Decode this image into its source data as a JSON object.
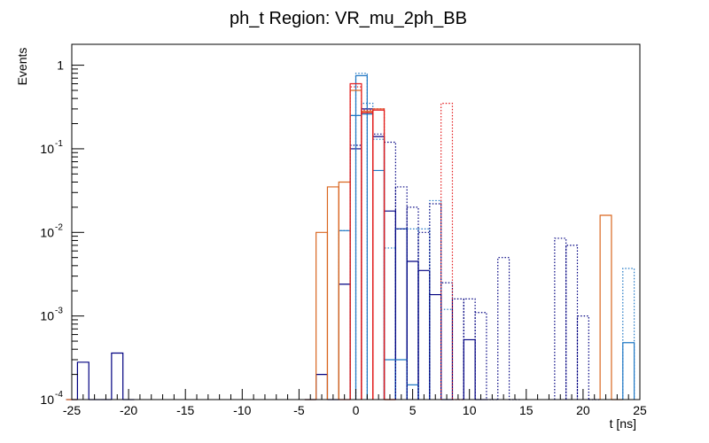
{
  "chart_data": {
    "type": "histogram",
    "title": "ph_t Region: VR_mu_2ph_BB",
    "xlabel": "t [ns]",
    "ylabel": "Events",
    "xlim": [
      -25,
      25
    ],
    "ylim": [
      0.0001,
      1.8
    ],
    "yscale": "log",
    "bin_width": 1,
    "x_tick_labels": [
      "-25",
      "-20",
      "-15",
      "-10",
      "-5",
      "0",
      "5",
      "10",
      "15",
      "20",
      "25"
    ],
    "y_tick_labels": [
      {
        "base": "10",
        "exp": "-4"
      },
      {
        "base": "10",
        "exp": "-3"
      },
      {
        "base": "10",
        "exp": "-2"
      },
      {
        "base": "10",
        "exp": "-1"
      },
      {
        "base": "1",
        "exp": ""
      }
    ],
    "series": [
      {
        "name": "navy-solid",
        "color": "#000080",
        "style": "solid",
        "bins": [
          {
            "x": -25,
            "y": 0.0001
          },
          {
            "x": -24,
            "y": 0.00028
          },
          {
            "x": -23,
            "y": 0.0001
          },
          {
            "x": -22,
            "y": 0.0001
          },
          {
            "x": -21,
            "y": 0.00036
          },
          {
            "x": -20,
            "y": 0.0001
          },
          {
            "x": -4,
            "y": 0.0001
          },
          {
            "x": -3,
            "y": 0.0002
          },
          {
            "x": -2,
            "y": 0.0001
          },
          {
            "x": -1,
            "y": 0.0024
          },
          {
            "x": 0,
            "y": 0.1
          },
          {
            "x": 1,
            "y": 0.3
          },
          {
            "x": 2,
            "y": 0.14
          },
          {
            "x": 3,
            "y": 0.018
          },
          {
            "x": 4,
            "y": 0.011
          },
          {
            "x": 5,
            "y": 0.0045
          },
          {
            "x": 6,
            "y": 0.0035
          },
          {
            "x": 7,
            "y": 0.0018
          },
          {
            "x": 8,
            "y": 0.0001
          },
          {
            "x": 10,
            "y": 0.00052
          },
          {
            "x": 11,
            "y": 0.0001
          }
        ]
      },
      {
        "name": "blue-solid",
        "color": "#1f77c4",
        "style": "solid",
        "bins": [
          {
            "x": -1,
            "y": 0.0105
          },
          {
            "x": 0,
            "y": 0.25
          },
          {
            "x": 0.5,
            "y": 0.75
          },
          {
            "x": 1,
            "y": 0.26
          },
          {
            "x": 2,
            "y": 0.055
          },
          {
            "x": 3,
            "y": 0.0003
          },
          {
            "x": 4,
            "y": 0.0003
          },
          {
            "x": 5,
            "y": 0.00015
          },
          {
            "x": 24,
            "y": 0.00048
          }
        ]
      },
      {
        "name": "blue-dotted",
        "color": "#1f77c4",
        "style": "dotted",
        "bins": [
          {
            "x": -1,
            "y": 0.0105
          },
          {
            "x": 0,
            "y": 0.25
          },
          {
            "x": 0.5,
            "y": 0.8
          },
          {
            "x": 1,
            "y": 0.35
          },
          {
            "x": 2,
            "y": 0.13
          },
          {
            "x": 3,
            "y": 0.0065
          },
          {
            "x": 4,
            "y": 0.011
          },
          {
            "x": 5,
            "y": 0.011
          },
          {
            "x": 6,
            "y": 0.011
          },
          {
            "x": 7,
            "y": 0.024
          },
          {
            "x": 8,
            "y": 0.0012
          },
          {
            "x": 24,
            "y": 0.0037
          }
        ]
      },
      {
        "name": "navy-dotted",
        "color": "#000080",
        "style": "dotted",
        "bins": [
          {
            "x": 0,
            "y": 0.11
          },
          {
            "x": 1,
            "y": 0.3
          },
          {
            "x": 2,
            "y": 0.15
          },
          {
            "x": 3,
            "y": 0.12
          },
          {
            "x": 4,
            "y": 0.035
          },
          {
            "x": 5,
            "y": 0.02
          },
          {
            "x": 6,
            "y": 0.01
          },
          {
            "x": 7,
            "y": 0.022
          },
          {
            "x": 8,
            "y": 0.0025
          },
          {
            "x": 9,
            "y": 0.0016
          },
          {
            "x": 10,
            "y": 0.0016
          },
          {
            "x": 11,
            "y": 0.0011
          },
          {
            "x": 12,
            "y": 0.0001
          },
          {
            "x": 13,
            "y": 0.005
          },
          {
            "x": 14,
            "y": 0.0001
          },
          {
            "x": 18,
            "y": 0.0085
          },
          {
            "x": 19,
            "y": 0.007
          },
          {
            "x": 20,
            "y": 0.001
          },
          {
            "x": 21,
            "y": 0.0001
          }
        ]
      },
      {
        "name": "orange-solid",
        "color": "#d9661f",
        "style": "solid",
        "bins": [
          {
            "x": -25,
            "y": 0.0001
          },
          {
            "x": -4,
            "y": 0.0001
          },
          {
            "x": -3,
            "y": 0.01
          },
          {
            "x": -2,
            "y": 0.035
          },
          {
            "x": -1,
            "y": 0.04
          },
          {
            "x": 0,
            "y": 0.5
          },
          {
            "x": 1,
            "y": 0.28
          },
          {
            "x": 2,
            "y": 0.3
          },
          {
            "x": 3,
            "y": 0.0001
          },
          {
            "x": 22,
            "y": 0.016
          },
          {
            "x": 23,
            "y": 0.0001
          }
        ]
      },
      {
        "name": "red-solid",
        "color": "#e31a1c",
        "style": "solid",
        "bins": [
          {
            "x": -1,
            "y": 0.0001
          },
          {
            "x": 0,
            "y": 0.6
          },
          {
            "x": 1,
            "y": 0.27
          },
          {
            "x": 2,
            "y": 0.29
          },
          {
            "x": 3,
            "y": 0.0001
          }
        ]
      },
      {
        "name": "red-dotted",
        "color": "#e31a1c",
        "style": "dotted",
        "bins": [
          {
            "x": 0,
            "y": 0.55
          },
          {
            "x": 1,
            "y": 0.29
          },
          {
            "x": 2,
            "y": 0.3
          },
          {
            "x": 8,
            "y": 0.35
          },
          {
            "x": 9,
            "y": 0.0001
          }
        ]
      }
    ]
  }
}
